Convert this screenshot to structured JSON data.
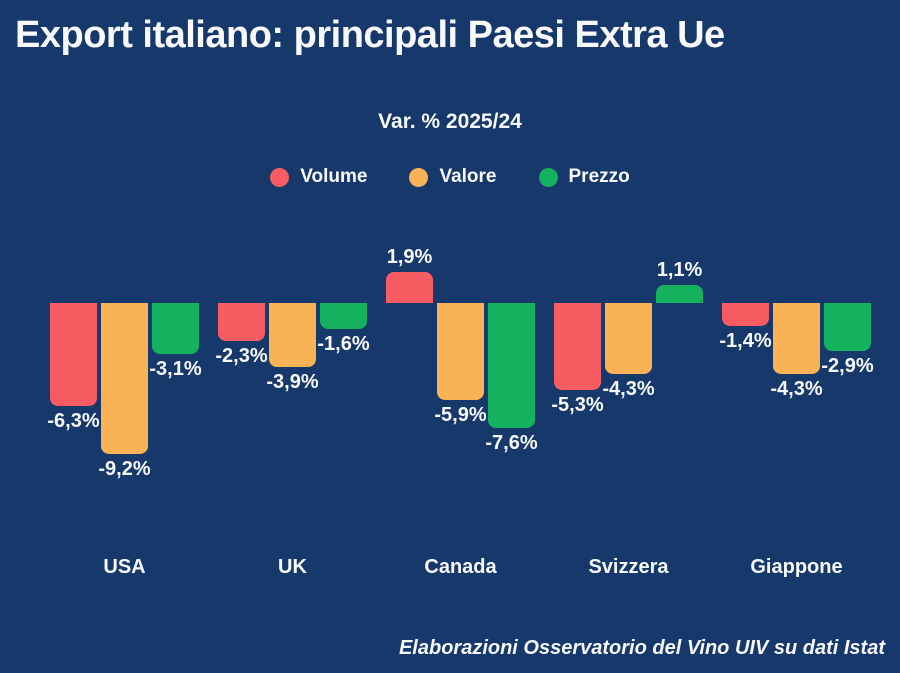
{
  "title": "Export italiano: principali Paesi Extra Ue",
  "subtitle": "Var. % 2025/24",
  "footer": "Elaborazioni Osservatorio del Vino UIV su dati Istat",
  "colors": {
    "background": "#17386b",
    "text": "#f7f9fc",
    "volume": "#f85c63",
    "valore": "#f9b356",
    "prezzo": "#14b15e"
  },
  "legend": [
    {
      "label": "Volume",
      "color": "#f85c63"
    },
    {
      "label": "Valore",
      "color": "#f9b356"
    },
    {
      "label": "Prezzo",
      "color": "#14b15e"
    }
  ],
  "chart_data": {
    "type": "bar",
    "title": "Export italiano: principali Paesi Extra Ue",
    "subtitle": "Var. % 2025/24",
    "unit": "percent",
    "categories": [
      "USA",
      "UK",
      "Canada",
      "Svizzera",
      "Giappone"
    ],
    "series": [
      {
        "name": "Volume",
        "color": "#f85c63",
        "values": [
          -6.3,
          -2.3,
          1.9,
          -5.3,
          -1.4
        ],
        "labels": [
          "-6,3%",
          "-2,3%",
          "1,9%",
          "-5,3%",
          "-1,4%"
        ]
      },
      {
        "name": "Valore",
        "color": "#f9b356",
        "values": [
          -9.2,
          -3.9,
          -5.9,
          -4.3,
          -4.3
        ],
        "labels": [
          "-9,2%",
          "-3,9%",
          "-5,9%",
          "-4,3%",
          "-4,3%"
        ]
      },
      {
        "name": "Prezzo",
        "color": "#14b15e",
        "values": [
          -3.1,
          -1.6,
          -7.6,
          1.1,
          -2.9
        ],
        "labels": [
          "-3,1%",
          "-1,6%",
          "-7,6%",
          "1,1%",
          "-2,9%"
        ]
      }
    ],
    "ylim": [
      -9.2,
      1.9
    ],
    "grid": false,
    "legend_position": "top-center",
    "value_labels_shown": true
  }
}
